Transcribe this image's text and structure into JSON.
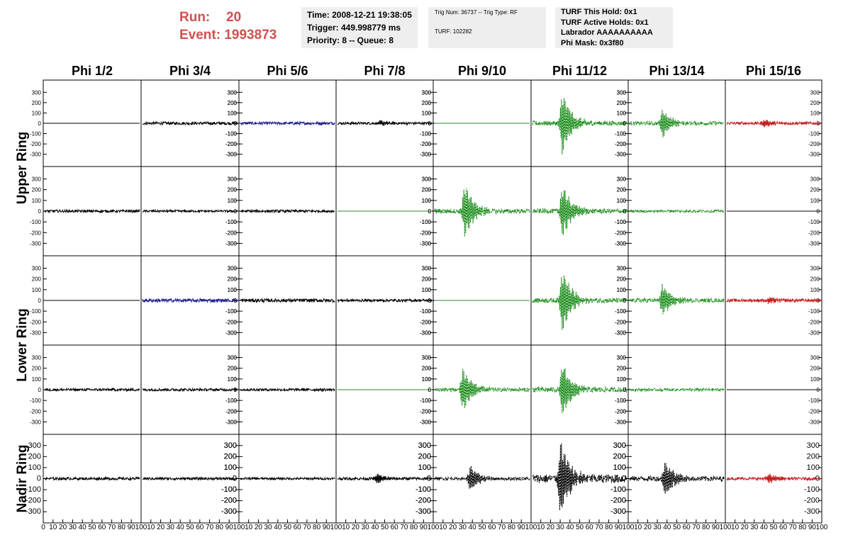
{
  "header": {
    "run_label": "Run:",
    "run_value": "20",
    "event_label": "Event:",
    "event_value": "1993873",
    "time": "Time: 2008-12-21 19:38:05",
    "trigger": "Trigger: 449.998779 ms",
    "priority": "Priority: 8 -- Queue: 8",
    "trig_num": "Trig Num: 36737 -- Trig Type: RF",
    "turf": "TURF: 102282",
    "turf_this_hold": "TURF This Hold: 0x1",
    "turf_active_holds": "TURF Active Holds: 0x1",
    "labrador": "Labrador AAAAAAAAAA",
    "phi_mask": "Phi Mask: 0x3f80"
  },
  "colors": {
    "run_text": "#d05050",
    "info_box": "#eeeeee",
    "black": "#000000",
    "blue": "#1a1a8c",
    "green": "#1a8c1a",
    "red": "#c41e1e",
    "flat_green": "#2a8a2a"
  },
  "chart_data": {
    "type": "line",
    "columns": [
      "Phi 1/2",
      "Phi 3/4",
      "Phi 5/6",
      "Phi 7/8",
      "Phi 9/10",
      "Phi 11/12",
      "Phi 13/14",
      "Phi 15/16"
    ],
    "rows": [
      "Upper Ring",
      "Upper Ring",
      "Lower Ring",
      "Lower Ring",
      "Nadir Ring"
    ],
    "row_labels": [
      {
        "text": "Upper Ring",
        "rows": [
          0,
          1
        ]
      },
      {
        "text": "Lower Ring",
        "rows": [
          2,
          3
        ]
      },
      {
        "text": "Nadir Ring",
        "rows": [
          4
        ]
      }
    ],
    "y_range": [
      -350,
      350
    ],
    "y_ticks": [
      -300,
      -200,
      -100,
      0,
      100,
      200,
      300
    ],
    "x_range": [
      0,
      100
    ],
    "x_ticks": [
      0,
      10,
      20,
      30,
      40,
      50,
      60,
      70,
      80,
      90,
      100
    ],
    "panels": [
      [
        {
          "color": "black",
          "amp": 0,
          "pulse": 0,
          "center": 0
        },
        {
          "color": "black",
          "amp": 14,
          "pulse": 0,
          "center": 0
        },
        {
          "color": "blue",
          "amp": 14,
          "pulse": 0,
          "center": 0
        },
        {
          "color": "black",
          "amp": 12,
          "pulse": 25,
          "center": 45
        },
        {
          "color": "flat_green",
          "amp": 0,
          "pulse": 0,
          "center": 0
        },
        {
          "color": "green",
          "amp": 22,
          "pulse": 300,
          "center": 32,
          "dashed": true
        },
        {
          "color": "green",
          "amp": 18,
          "pulse": 140,
          "center": 35,
          "dashed": true
        },
        {
          "color": "red",
          "amp": 14,
          "pulse": 30,
          "center": 40
        }
      ],
      [
        {
          "color": "black",
          "amp": 12,
          "pulse": 0,
          "center": 0
        },
        {
          "color": "black",
          "amp": 10,
          "pulse": 0,
          "center": 0
        },
        {
          "color": "black",
          "amp": 12,
          "pulse": 0,
          "center": 0
        },
        {
          "color": "flat_green",
          "amp": 0,
          "pulse": 0,
          "center": 0
        },
        {
          "color": "green",
          "amp": 22,
          "pulse": 250,
          "center": 32,
          "dashed": true
        },
        {
          "color": "green",
          "amp": 22,
          "pulse": 240,
          "center": 32,
          "dashed": true
        },
        {
          "color": "green",
          "amp": 12,
          "pulse": 0,
          "center": 0,
          "dashed": true
        },
        {
          "color": "black",
          "amp": 0,
          "pulse": 0,
          "center": 0
        }
      ],
      [
        {
          "color": "black",
          "amp": 0,
          "pulse": 0,
          "center": 0
        },
        {
          "color": "blue",
          "amp": 16,
          "pulse": 0,
          "center": 0
        },
        {
          "color": "black",
          "amp": 16,
          "pulse": 0,
          "center": 0
        },
        {
          "color": "black",
          "amp": 12,
          "pulse": 0,
          "center": 0
        },
        {
          "color": "flat_green",
          "amp": 0,
          "pulse": 0,
          "center": 0
        },
        {
          "color": "green",
          "amp": 22,
          "pulse": 300,
          "center": 32,
          "dashed": true
        },
        {
          "color": "green",
          "amp": 18,
          "pulse": 150,
          "center": 35,
          "dashed": true
        },
        {
          "color": "red",
          "amp": 14,
          "pulse": 30,
          "center": 45
        }
      ],
      [
        {
          "color": "black",
          "amp": 12,
          "pulse": 0,
          "center": 0
        },
        {
          "color": "black",
          "amp": 12,
          "pulse": 0,
          "center": 0
        },
        {
          "color": "black",
          "amp": 12,
          "pulse": 0,
          "center": 0
        },
        {
          "color": "flat_green",
          "amp": 0,
          "pulse": 0,
          "center": 0
        },
        {
          "color": "green",
          "amp": 18,
          "pulse": 200,
          "center": 30,
          "dashed": true
        },
        {
          "color": "green",
          "amp": 24,
          "pulse": 250,
          "center": 32,
          "dashed": true
        },
        {
          "color": "green",
          "amp": 12,
          "pulse": 0,
          "center": 0,
          "dashed": true
        },
        {
          "color": "black",
          "amp": 0,
          "pulse": 0,
          "center": 0
        }
      ],
      [
        {
          "color": "black",
          "amp": 12,
          "pulse": 0,
          "center": 0
        },
        {
          "color": "black",
          "amp": 12,
          "pulse": 0,
          "center": 0
        },
        {
          "color": "black",
          "amp": 10,
          "pulse": 0,
          "center": 0
        },
        {
          "color": "black",
          "amp": 12,
          "pulse": 40,
          "center": 42
        },
        {
          "color": "black",
          "amp": 14,
          "pulse": 110,
          "center": 38,
          "dashed": true
        },
        {
          "color": "black",
          "amp": 40,
          "pulse": 340,
          "center": 30,
          "dashed": true
        },
        {
          "color": "black",
          "amp": 22,
          "pulse": 160,
          "center": 38,
          "dashed": true
        },
        {
          "color": "red",
          "amp": 12,
          "pulse": 40,
          "center": 45
        }
      ]
    ]
  }
}
